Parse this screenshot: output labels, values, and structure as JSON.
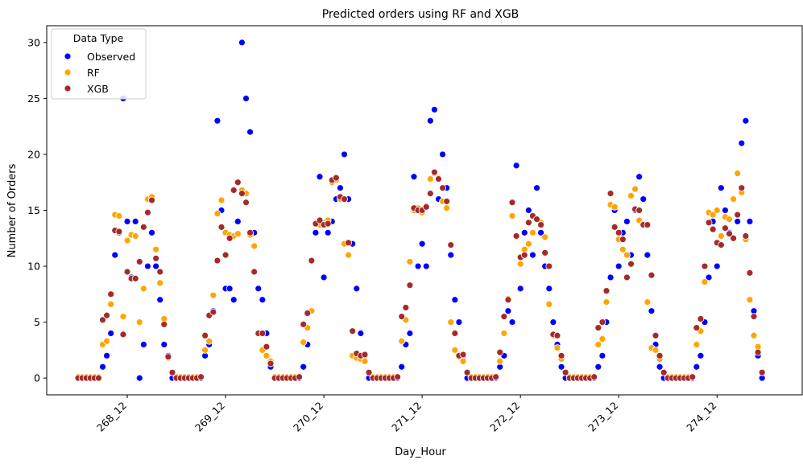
{
  "chart_data": {
    "type": "scatter",
    "title": "Predicted orders using RF and XGB",
    "xlabel": "Day_Hour",
    "ylabel": "Number of Orders",
    "ylim": [
      -1.5,
      31.5
    ],
    "yticks": [
      0,
      5,
      10,
      15,
      20,
      25,
      30
    ],
    "xtick_labels": [
      "268_12",
      "269_12",
      "270_12",
      "271_12",
      "272_12",
      "273_12",
      "274_12"
    ],
    "xtick_index": [
      12,
      36,
      60,
      84,
      108,
      132,
      156
    ],
    "x_count": 168,
    "legend": {
      "title": "Data Type",
      "position": "top-left",
      "entries": [
        "Observed",
        "RF",
        "XGB"
      ]
    },
    "colors": {
      "Observed": "#0000ff",
      "RF": "#ffa500",
      "XGB": "#a52a2a"
    },
    "series": [
      {
        "name": "Observed",
        "values": [
          0,
          0,
          0,
          0,
          0,
          0,
          1,
          2,
          4,
          11,
          13,
          25,
          14,
          9,
          14,
          0,
          3,
          10,
          13,
          10,
          7,
          3,
          2,
          0,
          0,
          0,
          0,
          0,
          0,
          0,
          0,
          2,
          3,
          6,
          23,
          15,
          8,
          8,
          7,
          14,
          30,
          25,
          22,
          13,
          8,
          7,
          4,
          1,
          0,
          0,
          0,
          0,
          0,
          0,
          0,
          1,
          3,
          6,
          13,
          18,
          9,
          13,
          14,
          16,
          17,
          20,
          16,
          12,
          8,
          4,
          2,
          0,
          0,
          0,
          0,
          0,
          0,
          0,
          0,
          1,
          3,
          4,
          18,
          10,
          12,
          10,
          23,
          24,
          16,
          20,
          17,
          11,
          7,
          5,
          2,
          0,
          0,
          0,
          0,
          0,
          0,
          0,
          0,
          1,
          2,
          6,
          5,
          19,
          8,
          13,
          15,
          11,
          17,
          13,
          10,
          8,
          5,
          3,
          1,
          0,
          0,
          0,
          0,
          0,
          0,
          0,
          0,
          1,
          2,
          5,
          9,
          15,
          10,
          13,
          14,
          11,
          15,
          18,
          16,
          11,
          6,
          3,
          1,
          0,
          0,
          0,
          0,
          0,
          0,
          0,
          0,
          1,
          2,
          5,
          9,
          14,
          10,
          17,
          15,
          13,
          16,
          14,
          21,
          23,
          14,
          6,
          2,
          0
        ]
      },
      {
        "name": "RF",
        "values": [
          0.1,
          0.1,
          0.1,
          0.1,
          0.1,
          0.1,
          3.0,
          3.3,
          6.6,
          14.6,
          14.5,
          5.5,
          12.3,
          12.8,
          12.7,
          5.0,
          8.0,
          16.0,
          16.2,
          11.5,
          8.5,
          5.3,
          1.8,
          0.5,
          0.1,
          0.1,
          0.1,
          0.1,
          0.1,
          0.1,
          0.1,
          2.5,
          3.3,
          7.4,
          14.7,
          15.9,
          13.0,
          12.8,
          12.7,
          12.9,
          16.8,
          16.5,
          12.8,
          11.8,
          4.0,
          2.5,
          2.0,
          1.5,
          0.1,
          0.1,
          0.1,
          0.1,
          0.1,
          0.1,
          0.1,
          3.2,
          4.5,
          6.0,
          13.8,
          13.7,
          13.9,
          14.1,
          17.5,
          17.7,
          16.0,
          12.0,
          11.0,
          2.0,
          1.8,
          1.7,
          1.5,
          0.5,
          0.1,
          0.1,
          0.1,
          0.1,
          0.1,
          0.1,
          0.1,
          3.3,
          5.2,
          10.4,
          15.0,
          15.2,
          14.8,
          15.4,
          17.8,
          18.3,
          17.9,
          15.8,
          15.2,
          5.0,
          2.5,
          1.9,
          1.5,
          0.5,
          0.1,
          0.1,
          0.1,
          0.1,
          0.1,
          0.1,
          0.1,
          1.5,
          4.0,
          7.1,
          14.5,
          12.6,
          10.2,
          11.5,
          12.0,
          13.0,
          14.2,
          13.9,
          12.6,
          6.6,
          3.8,
          2.7,
          1.7,
          0.5,
          0.1,
          0.1,
          0.1,
          0.1,
          0.1,
          0.1,
          0.1,
          3.0,
          3.5,
          6.8,
          15.5,
          15.3,
          12.4,
          11.5,
          11.0,
          16.3,
          16.9,
          14.1,
          13.8,
          6.8,
          2.7,
          2.5,
          1.7,
          0.5,
          0.1,
          0.1,
          0.1,
          0.1,
          0.1,
          0.1,
          0.1,
          3.0,
          4.2,
          8.6,
          14.8,
          14.6,
          15.0,
          12.7,
          14.4,
          14.2,
          16.0,
          18.3,
          16.6,
          12.4,
          7.0,
          3.8,
          2.8,
          0.5
        ]
      },
      {
        "name": "XGB",
        "values": [
          0,
          0,
          0,
          0,
          0,
          0,
          5.2,
          5.6,
          7.5,
          13.2,
          13.1,
          3.9,
          9.5,
          8.9,
          8.9,
          10.4,
          13.5,
          14.8,
          15.9,
          10.7,
          9.5,
          4.8,
          1.9,
          0.5,
          0,
          0,
          0,
          0,
          0,
          0,
          0.1,
          3.8,
          5.6,
          5.9,
          10.5,
          13.5,
          11.0,
          12.5,
          16.8,
          17.5,
          16.5,
          15.7,
          13.0,
          9.5,
          4.0,
          4.0,
          2.8,
          1.3,
          0,
          0,
          0,
          0,
          0,
          0,
          0.1,
          4.8,
          5.8,
          10.5,
          13.8,
          14.1,
          13.7,
          13.8,
          17.7,
          17.9,
          16.2,
          16.0,
          12.1,
          4.2,
          2.2,
          2.0,
          2.1,
          0.5,
          0,
          0,
          0,
          0,
          0,
          0,
          0.1,
          5.5,
          6.3,
          8.3,
          15.2,
          15.0,
          15.0,
          15.3,
          16.5,
          18.4,
          17.8,
          17.0,
          15.8,
          11.9,
          4.0,
          2.0,
          2.1,
          0.5,
          0,
          0,
          0,
          0,
          0,
          0,
          0.1,
          2.3,
          5.5,
          7.0,
          15.7,
          12.7,
          10.8,
          11.0,
          13.9,
          14.5,
          14.2,
          13.7,
          11.2,
          10.0,
          3.9,
          3.8,
          2.0,
          0.5,
          0,
          0,
          0,
          0,
          0,
          0,
          0.1,
          4.5,
          5.0,
          7.8,
          16.5,
          13.5,
          13.0,
          12.4,
          9.0,
          10.2,
          15.1,
          15.0,
          13.7,
          13.7,
          9.2,
          3.8,
          2.0,
          0.5,
          0,
          0,
          0,
          0,
          0,
          0,
          0.1,
          4.5,
          5.3,
          10.0,
          13.9,
          13.3,
          12.1,
          11.9,
          13.4,
          12.9,
          12.5,
          14.6,
          17.0,
          12.7,
          9.4,
          5.5,
          2.3,
          0.5
        ]
      }
    ]
  }
}
